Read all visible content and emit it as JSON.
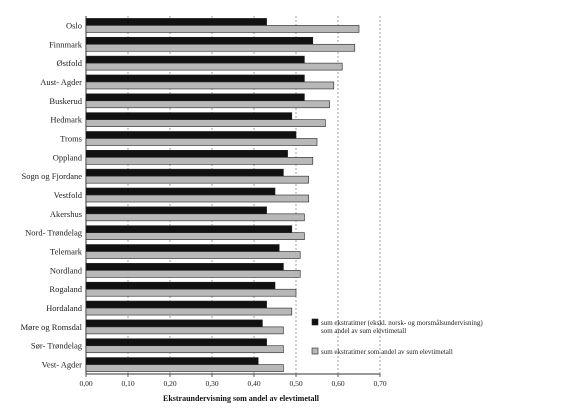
{
  "chart_data": {
    "type": "bar",
    "orientation": "horizontal",
    "title": "",
    "xlabel": "Ekstraundervisning som andel av elevtimetall",
    "ylabel": "",
    "xlim": [
      0,
      0.7
    ],
    "xticks": [
      "0,00",
      "0,10",
      "0,20",
      "0,30",
      "0,40",
      "0,50",
      "0,60",
      "0,70"
    ],
    "grid": "vertical dashed",
    "legend_position": "right",
    "categories": [
      "Oslo",
      "Finnmark",
      "Østfold",
      "Aust- Agder",
      "Buskerud",
      "Hedmark",
      "Troms",
      "Oppland",
      "Sogn og Fjordane",
      "Vestfold",
      "Akershus",
      "Nord- Trøndelag",
      "Telemark",
      "Nordland",
      "Rogaland",
      "Hordaland",
      "Møre og Romsdal",
      "Sør- Trøndelag",
      "Vest- Agder"
    ],
    "series": [
      {
        "name": "sum ekstratimer (ekskl. norsk- og morsmålsundervisning) som andel av sum elevtimetall",
        "color": "#111111",
        "values": [
          0.43,
          0.54,
          0.52,
          0.52,
          0.52,
          0.49,
          0.5,
          0.48,
          0.47,
          0.45,
          0.43,
          0.49,
          0.46,
          0.47,
          0.45,
          0.43,
          0.42,
          0.43,
          0.41
        ]
      },
      {
        "name": "sum ekstratimer som andel av sum elevtimetall",
        "color": "#b8b8b8",
        "values": [
          0.65,
          0.64,
          0.61,
          0.59,
          0.58,
          0.57,
          0.55,
          0.54,
          0.53,
          0.53,
          0.52,
          0.52,
          0.51,
          0.51,
          0.5,
          0.49,
          0.47,
          0.47,
          0.47
        ]
      }
    ]
  }
}
